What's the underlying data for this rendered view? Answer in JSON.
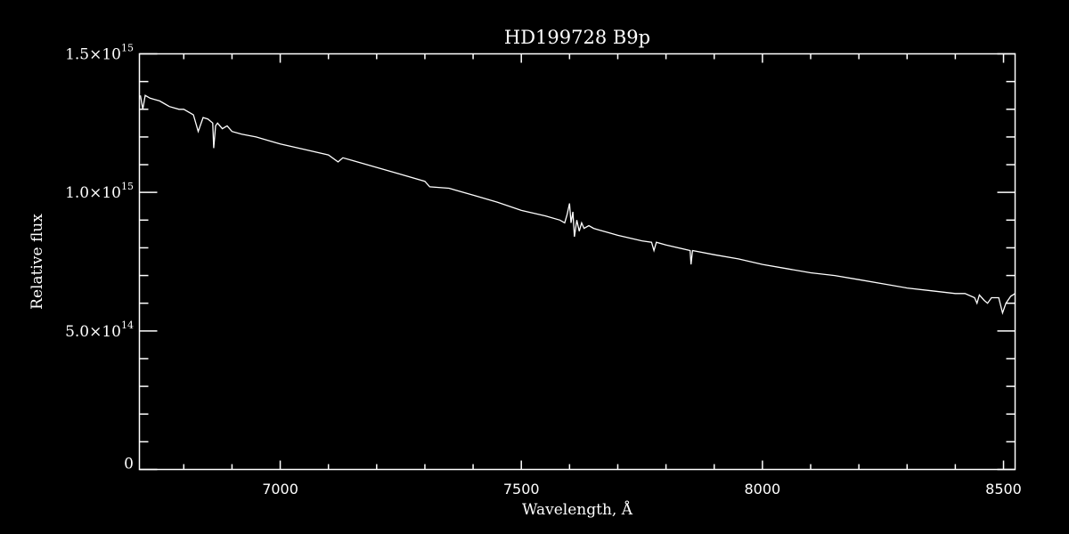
{
  "chart_data": {
    "type": "line",
    "title": "HD199728  B9p",
    "xlabel": "Wavelength, Å",
    "ylabel": "Relative flux",
    "xlim": [
      6708,
      8524
    ],
    "ylim": [
      0,
      1500000000000000.0
    ],
    "x_major_ticks": [
      7000,
      7500,
      8000,
      8500
    ],
    "x_tick_labels": [
      "7000",
      "7500",
      "8000",
      "8500"
    ],
    "x_minor_step": 100,
    "y_major_ticks": [
      0,
      500000000000000.0,
      1000000000000000.0,
      1500000000000000.0
    ],
    "y_tick_labels": [
      {
        "mant": "0",
        "exp": ""
      },
      {
        "mant": "5.0×10",
        "exp": "14"
      },
      {
        "mant": "1.0×10",
        "exp": "15"
      },
      {
        "mant": "1.5×10",
        "exp": "15"
      }
    ],
    "y_minor_step": 100000000000000.0,
    "grid": false,
    "background": "#000000",
    "line_color": "#ffffff",
    "series": [
      {
        "x": [
          6710,
          6715,
          6720,
          6730,
          6740,
          6750,
          6760,
          6770,
          6780,
          6790,
          6800,
          6820,
          6830,
          6840,
          6850,
          6860,
          6862,
          6866,
          6870,
          6880,
          6890,
          6900,
          6920,
          6950,
          6980,
          7000,
          7050,
          7100,
          7120,
          7130,
          7150,
          7200,
          7250,
          7300,
          7310,
          7350,
          7400,
          7450,
          7500,
          7550,
          7580,
          7590,
          7595,
          7600,
          7603,
          7607,
          7610,
          7615,
          7620,
          7625,
          7630,
          7640,
          7650,
          7660,
          7680,
          7700,
          7750,
          7770,
          7775,
          7780,
          7800,
          7850,
          7852,
          7855,
          7900,
          7950,
          8000,
          8050,
          8100,
          8150,
          8200,
          8250,
          8300,
          8350,
          8400,
          8420,
          8440,
          8445,
          8450,
          8460,
          8467,
          8475,
          8490,
          8498,
          8505,
          8515,
          8524
        ],
        "y": [
          1350000000000000.0,
          1300000000000000.0,
          1350000000000000.0,
          1340000000000000.0,
          1335000000000000.0,
          1330000000000000.0,
          1320000000000000.0,
          1310000000000000.0,
          1305000000000000.0,
          1300000000000000.0,
          1300000000000000.0,
          1280000000000000.0,
          1220000000000000.0,
          1270000000000000.0,
          1265000000000000.0,
          1250000000000000.0,
          1160000000000000.0,
          1240000000000000.0,
          1250000000000000.0,
          1230000000000000.0,
          1240000000000000.0,
          1220000000000000.0,
          1210000000000000.0,
          1200000000000000.0,
          1185000000000000.0,
          1175000000000000.0,
          1155000000000000.0,
          1135000000000000.0,
          1110000000000000.0,
          1125000000000000.0,
          1115000000000000.0,
          1090000000000000.0,
          1065000000000000.0,
          1040000000000000.0,
          1020000000000000.0,
          1015000000000000.0,
          990000000000000.0,
          965000000000000.0,
          935000000000000.0,
          915000000000000.0,
          900000000000000.0,
          890000000000000.0,
          920000000000000.0,
          960000000000000.0,
          890000000000000.0,
          930000000000000.0,
          840000000000000.0,
          900000000000000.0,
          860000000000000.0,
          890000000000000.0,
          870000000000000.0,
          880000000000000.0,
          870000000000000.0,
          865000000000000.0,
          855000000000000.0,
          845000000000000.0,
          825000000000000.0,
          820000000000000.0,
          790000000000000.0,
          820000000000000.0,
          810000000000000.0,
          790000000000000.0,
          740000000000000.0,
          790000000000000.0,
          775000000000000.0,
          760000000000000.0,
          740000000000000.0,
          725000000000000.0,
          710000000000000.0,
          700000000000000.0,
          685000000000000.0,
          670000000000000.0,
          655000000000000.0,
          645000000000000.0,
          635000000000000.0,
          635000000000000.0,
          620000000000000.0,
          600000000000000.0,
          630000000000000.0,
          610000000000000.0,
          600000000000000.0,
          620000000000000.0,
          620000000000000.0,
          565000000000000.0,
          600000000000000.0,
          625000000000000.0,
          635000000000000.0
        ]
      }
    ]
  }
}
